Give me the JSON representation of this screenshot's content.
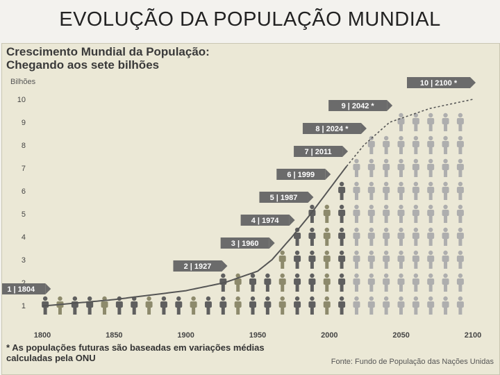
{
  "slide": {
    "title": "EVOLUÇÃO DA POPULAÇÃO MUNDIAL"
  },
  "chart_data": {
    "type": "line",
    "title": "Crescimento Mundial da População:",
    "subtitle": "Chegando aos sete bilhões",
    "ylabel": "Bilhões",
    "xlabel": "",
    "xlim": [
      1800,
      2100
    ],
    "ylim": [
      0,
      10
    ],
    "x_ticks": [
      1800,
      1850,
      1900,
      1950,
      2000,
      2050,
      2100
    ],
    "y_ticks": [
      1,
      2,
      3,
      4,
      5,
      6,
      7,
      8,
      9,
      10
    ],
    "milestones": [
      {
        "billions": 1,
        "year": 1804,
        "label": "1 | 1804",
        "projected": false
      },
      {
        "billions": 2,
        "year": 1927,
        "label": "2 | 1927",
        "projected": false
      },
      {
        "billions": 3,
        "year": 1960,
        "label": "3 | 1960",
        "projected": false
      },
      {
        "billions": 4,
        "year": 1974,
        "label": "4 | 1974",
        "projected": false
      },
      {
        "billions": 5,
        "year": 1987,
        "label": "5 | 1987",
        "projected": false
      },
      {
        "billions": 6,
        "year": 1999,
        "label": "6 | 1999",
        "projected": false
      },
      {
        "billions": 7,
        "year": 2011,
        "label": "7 | 2011",
        "projected": false
      },
      {
        "billions": 8,
        "year": 2024,
        "label": "8 | 2024 *",
        "projected": true
      },
      {
        "billions": 9,
        "year": 2042,
        "label": "9 | 2042 *",
        "projected": true
      },
      {
        "billions": 10,
        "year": 2100,
        "label": "10 | 2100 *",
        "projected": true
      }
    ],
    "series": [
      {
        "x": [
          1800,
          1804,
          1850,
          1900,
          1927,
          1950,
          1960,
          1974,
          1987,
          1999,
          2011,
          2024,
          2042,
          2070,
          2100
        ],
        "y": [
          0.98,
          1.0,
          1.26,
          1.65,
          2.0,
          2.5,
          3.0,
          4.0,
          5.0,
          6.0,
          7.0,
          8.0,
          9.0,
          9.6,
          10.0
        ]
      }
    ],
    "footnote_line1": "* As populações futuras são baseadas em variações médias",
    "footnote_line2": "calculadas pela ONU",
    "source": "Fonte: Fundo de População das Nações Unidas",
    "colors": {
      "background": "#ebe8d6",
      "line": "#555555",
      "figure_dark": "#5f5f5f",
      "figure_olive": "#8d8a6c",
      "figure_light": "#aeaeae",
      "label_box": "#6b6b6b",
      "label_text": "#ffffff"
    }
  }
}
